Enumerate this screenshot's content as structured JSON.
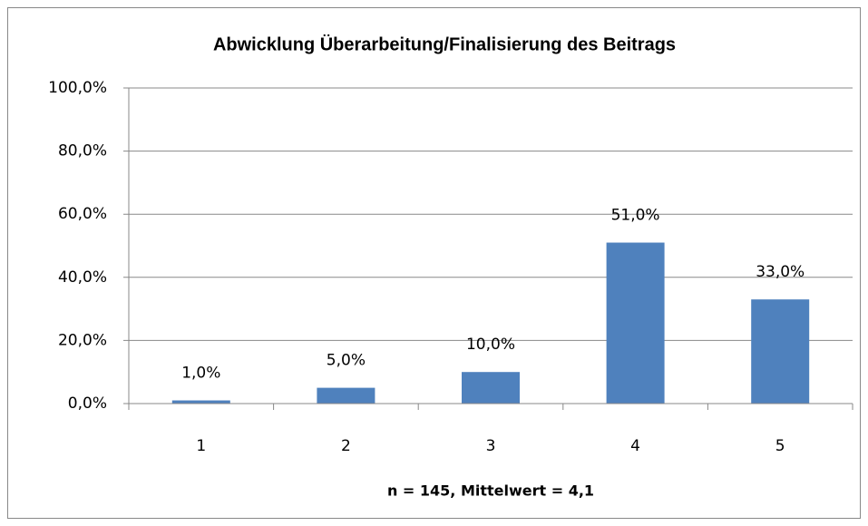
{
  "chart_data": {
    "type": "bar",
    "title": "Abwicklung Überarbeitung/Finalisierung des Beitrags",
    "x_label": "n = 145, Mittelwert = 4,1",
    "categories": [
      "1",
      "2",
      "3",
      "4",
      "5"
    ],
    "values": [
      1,
      5,
      10,
      51,
      33
    ],
    "value_labels": [
      "1,0%",
      "5,0%",
      "10,0%",
      "51,0%",
      "33,0%"
    ],
    "color": "#4f81bd",
    "ylim": [
      0,
      100
    ],
    "yticks": [
      {
        "value": 0,
        "label": "0,0%"
      },
      {
        "value": 20,
        "label": "20,0%"
      },
      {
        "value": 40,
        "label": "40,0%"
      },
      {
        "value": 60,
        "label": "60,0%"
      },
      {
        "value": 80,
        "label": "80,0%"
      },
      {
        "value": 100,
        "label": "100,0%"
      }
    ],
    "grid": true
  }
}
